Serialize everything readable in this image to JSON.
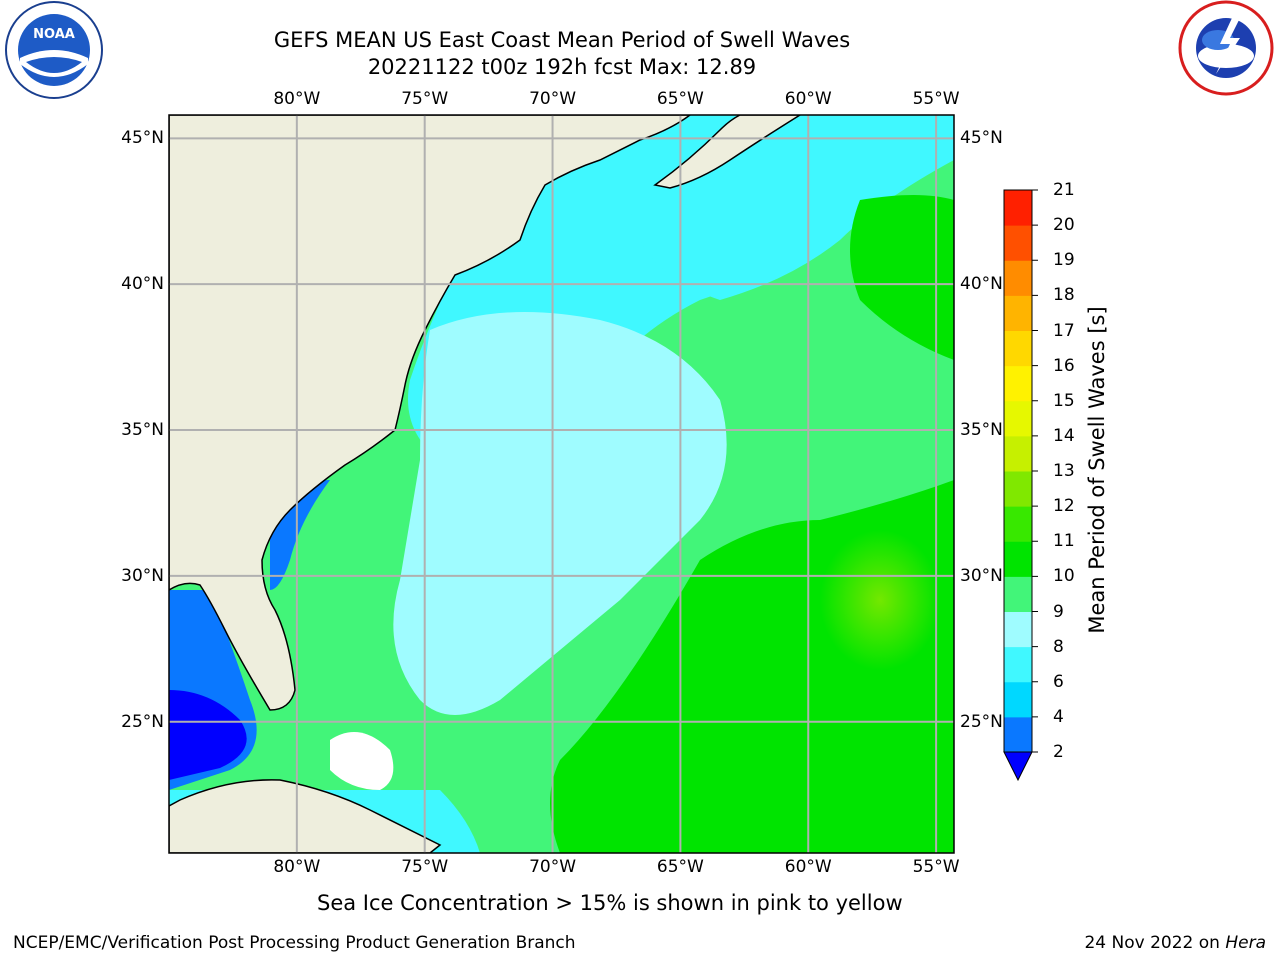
{
  "header": {
    "title_line1": "GEFS MEAN US East Coast Mean Period of Swell Waves",
    "title_line2": "20221122 t00z 192h fcst   Max: 12.89"
  },
  "logos": {
    "left": "noaa-logo",
    "right": "national-weather-service-logo"
  },
  "map": {
    "lon_labels": [
      "80°W",
      "75°W",
      "70°W",
      "65°W",
      "60°W",
      "55°W"
    ],
    "lat_labels": [
      "45°N",
      "40°N",
      "35°N",
      "30°N",
      "25°N"
    ],
    "extent": {
      "lon": [
        -85,
        -54.3
      ],
      "lat": [
        20.5,
        45.8
      ]
    },
    "colors": {
      "land": "#eeeedd",
      "grid": "#b0b0b0",
      "coast": "#000000"
    }
  },
  "colorbar": {
    "title": "Mean Period of Swell Waves [s]",
    "labels": [
      "2",
      "4",
      "6",
      "8",
      "9",
      "10",
      "11",
      "12",
      "13",
      "14",
      "15",
      "16",
      "17",
      "18",
      "19",
      "20",
      "21"
    ],
    "colors": [
      "#0a78ff",
      "#00d8ff",
      "#40f8ff",
      "#9ffcff",
      "#42f579",
      "#00e400",
      "#38e800",
      "#80e800",
      "#c6f000",
      "#e6f800",
      "#fff200",
      "#ffd800",
      "#ffb400",
      "#ff8c00",
      "#ff5000",
      "#ff2000"
    ],
    "under_color": "#0000ff"
  },
  "note": "Sea Ice Concentration > 15% is shown in pink to yellow",
  "footer": {
    "left": "NCEP/EMC/Verification Post Processing Product Generation Branch",
    "right_date": "24 Nov 2022 on",
    "right_host": "Hera"
  }
}
